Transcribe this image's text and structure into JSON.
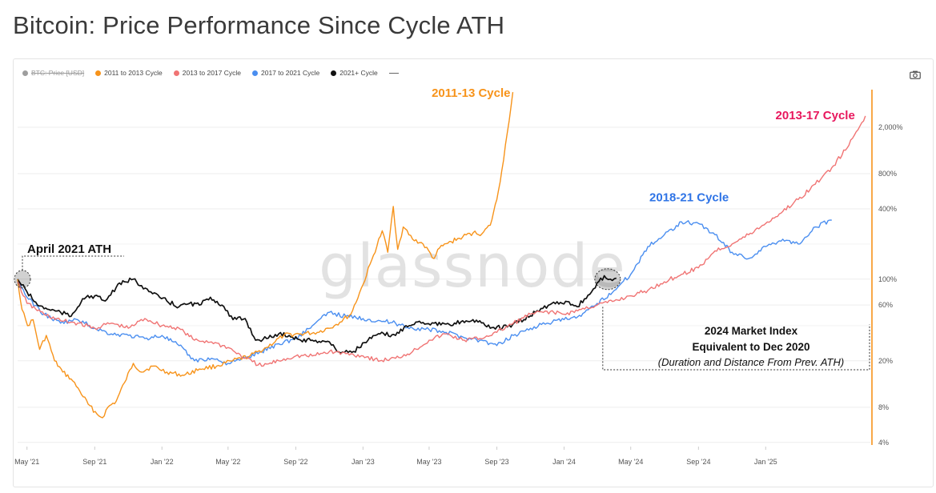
{
  "page": {
    "title": "Bitcoin: Price Performance Since Cycle ATH",
    "watermark": "glassnode"
  },
  "legend": {
    "items": [
      {
        "label": "BTC: Price [USD]",
        "color": "#9e9e9e",
        "enabled": false,
        "kind": "dot"
      },
      {
        "label": "2011 to 2013 Cycle",
        "color": "#f7931a",
        "enabled": true,
        "kind": "dot"
      },
      {
        "label": "2013 to 2017 Cycle",
        "color": "#f07474",
        "enabled": true,
        "kind": "dot"
      },
      {
        "label": "2017 to 2021 Cycle",
        "color": "#4a8ef0",
        "enabled": true,
        "kind": "dot"
      },
      {
        "label": "2021+ Cycle",
        "color": "#111111",
        "enabled": true,
        "kind": "dot"
      },
      {
        "label": "",
        "color": "#666666",
        "enabled": true,
        "kind": "line"
      }
    ]
  },
  "icons": {
    "camera": "camera-icon"
  },
  "annotations": {
    "ath_label": "April 2021 ATH",
    "cycle_2011_label": "2011-13 Cycle",
    "cycle_2013_label": "2013-17 Cycle",
    "cycle_2018_label": "2018-21 Cycle",
    "box_line1": "2024 Market Index",
    "box_line2": "Equivalent to Dec 2020",
    "box_line3": "(Duration and Distance From Prev. ATH)"
  },
  "chart_data": {
    "type": "line",
    "title": "Bitcoin: Price Performance Since Cycle ATH",
    "x_axis": {
      "ticks": [
        "May '21",
        "Sep '21",
        "Jan '22",
        "May '22",
        "Sep '22",
        "Jan '23",
        "May '23",
        "Sep '23",
        "Jan '24",
        "May '24",
        "Sep '24",
        "Jan '25"
      ],
      "range": [
        "2021-04-14",
        "2025-07-10"
      ]
    },
    "y_axis": {
      "scale": "log",
      "unit": "% of previous cycle ATH",
      "ticks": [
        "4%",
        "8%",
        "20%",
        "60%",
        "100%",
        "400%",
        "800%",
        "2,000%"
      ],
      "tick_values": [
        4,
        8,
        20,
        60,
        100,
        400,
        800,
        2000
      ],
      "range": [
        3.8,
        4200
      ],
      "position": "right"
    },
    "grid": true,
    "series": [
      {
        "name": "2011 to 2013 Cycle",
        "color": "#f7931a",
        "points": [
          [
            "2021-04-14",
            100
          ],
          [
            "2021-04-22",
            55
          ],
          [
            "2021-05-02",
            40
          ],
          [
            "2021-05-12",
            45
          ],
          [
            "2021-05-24",
            25
          ],
          [
            "2021-06-05",
            33
          ],
          [
            "2021-06-20",
            20
          ],
          [
            "2021-07-05",
            16
          ],
          [
            "2021-07-20",
            14
          ],
          [
            "2021-08-05",
            11
          ],
          [
            "2021-08-20",
            8.5
          ],
          [
            "2021-09-05",
            7
          ],
          [
            "2021-09-15",
            6.5
          ],
          [
            "2021-09-25",
            8
          ],
          [
            "2021-10-10",
            9
          ],
          [
            "2021-10-25",
            13
          ],
          [
            "2021-11-10",
            19
          ],
          [
            "2021-11-25",
            16
          ],
          [
            "2021-12-15",
            18
          ],
          [
            "2022-01-10",
            16
          ],
          [
            "2022-02-10",
            15
          ],
          [
            "2022-03-10",
            17
          ],
          [
            "2022-04-10",
            18
          ],
          [
            "2022-05-10",
            20
          ],
          [
            "2022-06-10",
            22
          ],
          [
            "2022-07-10",
            26
          ],
          [
            "2022-08-10",
            33
          ],
          [
            "2022-09-10",
            34
          ],
          [
            "2022-10-10",
            35
          ],
          [
            "2022-11-10",
            40
          ],
          [
            "2022-12-10",
            50
          ],
          [
            "2023-01-01",
            90
          ],
          [
            "2023-01-20",
            160
          ],
          [
            "2023-02-05",
            260
          ],
          [
            "2023-02-15",
            170
          ],
          [
            "2023-02-25",
            420
          ],
          [
            "2023-03-05",
            180
          ],
          [
            "2023-03-15",
            280
          ],
          [
            "2023-04-01",
            220
          ],
          [
            "2023-04-20",
            200
          ],
          [
            "2023-05-10",
            150
          ],
          [
            "2023-05-20",
            185
          ],
          [
            "2023-06-10",
            210
          ],
          [
            "2023-07-01",
            230
          ],
          [
            "2023-07-20",
            250
          ],
          [
            "2023-08-05",
            245
          ],
          [
            "2023-08-20",
            290
          ],
          [
            "2023-09-01",
            480
          ],
          [
            "2023-09-10",
            850
          ],
          [
            "2023-09-20",
            1800
          ],
          [
            "2023-09-30",
            4000
          ]
        ]
      },
      {
        "name": "2013 to 2017 Cycle",
        "color": "#f07474",
        "points": [
          [
            "2021-04-14",
            95
          ],
          [
            "2021-05-01",
            62
          ],
          [
            "2021-06-01",
            50
          ],
          [
            "2021-07-01",
            44
          ],
          [
            "2021-08-01",
            42
          ],
          [
            "2021-09-01",
            38
          ],
          [
            "2021-10-01",
            42
          ],
          [
            "2021-11-01",
            38
          ],
          [
            "2021-12-01",
            46
          ],
          [
            "2022-01-01",
            40
          ],
          [
            "2022-02-01",
            38
          ],
          [
            "2022-03-01",
            30
          ],
          [
            "2022-04-01",
            29
          ],
          [
            "2022-05-01",
            26
          ],
          [
            "2022-06-01",
            21
          ],
          [
            "2022-07-01",
            18
          ],
          [
            "2022-08-01",
            20
          ],
          [
            "2022-09-01",
            22
          ],
          [
            "2022-10-01",
            22
          ],
          [
            "2022-11-01",
            24
          ],
          [
            "2022-12-01",
            23
          ],
          [
            "2023-01-01",
            22
          ],
          [
            "2023-02-01",
            20
          ],
          [
            "2023-03-01",
            21
          ],
          [
            "2023-04-01",
            24
          ],
          [
            "2023-05-01",
            30
          ],
          [
            "2023-06-01",
            34
          ],
          [
            "2023-07-01",
            30
          ],
          [
            "2023-08-01",
            31
          ],
          [
            "2023-09-01",
            35
          ],
          [
            "2023-10-01",
            42
          ],
          [
            "2023-11-01",
            50
          ],
          [
            "2023-12-01",
            53
          ],
          [
            "2024-01-01",
            50
          ],
          [
            "2024-02-01",
            55
          ],
          [
            "2024-03-01",
            60
          ],
          [
            "2024-04-01",
            65
          ],
          [
            "2024-05-01",
            72
          ],
          [
            "2024-06-01",
            80
          ],
          [
            "2024-07-01",
            95
          ],
          [
            "2024-08-01",
            110
          ],
          [
            "2024-09-01",
            125
          ],
          [
            "2024-10-01",
            175
          ],
          [
            "2024-11-01",
            200
          ],
          [
            "2024-12-01",
            240
          ],
          [
            "2025-01-01",
            300
          ],
          [
            "2025-02-01",
            380
          ],
          [
            "2025-03-01",
            480
          ],
          [
            "2025-04-01",
            650
          ],
          [
            "2025-05-01",
            900
          ],
          [
            "2025-06-01",
            1400
          ],
          [
            "2025-07-01",
            2500
          ]
        ]
      },
      {
        "name": "2017 to 2021 Cycle",
        "color": "#4a8ef0",
        "points": [
          [
            "2021-04-14",
            100
          ],
          [
            "2021-05-01",
            70
          ],
          [
            "2021-06-01",
            50
          ],
          [
            "2021-07-01",
            42
          ],
          [
            "2021-08-01",
            45
          ],
          [
            "2021-09-01",
            38
          ],
          [
            "2021-10-01",
            34
          ],
          [
            "2021-11-01",
            33
          ],
          [
            "2021-12-01",
            31
          ],
          [
            "2022-01-01",
            33
          ],
          [
            "2022-02-01",
            27
          ],
          [
            "2022-03-01",
            20
          ],
          [
            "2022-04-01",
            21
          ],
          [
            "2022-05-01",
            19
          ],
          [
            "2022-06-01",
            21
          ],
          [
            "2022-07-01",
            24
          ],
          [
            "2022-08-01",
            28
          ],
          [
            "2022-09-01",
            31
          ],
          [
            "2022-10-01",
            40
          ],
          [
            "2022-11-01",
            52
          ],
          [
            "2022-12-01",
            48
          ],
          [
            "2023-01-01",
            46
          ],
          [
            "2023-02-01",
            44
          ],
          [
            "2023-03-01",
            42
          ],
          [
            "2023-04-01",
            38
          ],
          [
            "2023-05-01",
            37
          ],
          [
            "2023-06-01",
            35
          ],
          [
            "2023-07-01",
            32
          ],
          [
            "2023-08-01",
            30
          ],
          [
            "2023-09-01",
            27
          ],
          [
            "2023-10-01",
            33
          ],
          [
            "2023-11-01",
            38
          ],
          [
            "2023-12-01",
            42
          ],
          [
            "2024-01-01",
            45
          ],
          [
            "2024-02-01",
            48
          ],
          [
            "2024-03-01",
            62
          ],
          [
            "2024-04-01",
            80
          ],
          [
            "2024-05-01",
            110
          ],
          [
            "2024-06-01",
            190
          ],
          [
            "2024-07-01",
            240
          ],
          [
            "2024-08-01",
            310
          ],
          [
            "2024-09-01",
            300
          ],
          [
            "2024-10-01",
            240
          ],
          [
            "2024-11-01",
            170
          ],
          [
            "2024-12-01",
            150
          ],
          [
            "2025-01-01",
            190
          ],
          [
            "2025-02-01",
            220
          ],
          [
            "2025-03-01",
            200
          ],
          [
            "2025-04-01",
            280
          ],
          [
            "2025-05-01",
            320
          ]
        ]
      },
      {
        "name": "2021+ Cycle",
        "color": "#111111",
        "points": [
          [
            "2021-04-14",
            100
          ],
          [
            "2021-05-01",
            78
          ],
          [
            "2021-05-20",
            60
          ],
          [
            "2021-06-10",
            55
          ],
          [
            "2021-07-01",
            52
          ],
          [
            "2021-07-20",
            48
          ],
          [
            "2021-08-10",
            68
          ],
          [
            "2021-09-01",
            72
          ],
          [
            "2021-09-20",
            65
          ],
          [
            "2021-10-10",
            85
          ],
          [
            "2021-10-25",
            95
          ],
          [
            "2021-11-10",
            100
          ],
          [
            "2021-11-25",
            88
          ],
          [
            "2021-12-15",
            75
          ],
          [
            "2022-01-10",
            65
          ],
          [
            "2022-02-01",
            58
          ],
          [
            "2022-02-20",
            62
          ],
          [
            "2022-03-10",
            60
          ],
          [
            "2022-03-30",
            70
          ],
          [
            "2022-04-20",
            60
          ],
          [
            "2022-05-10",
            45
          ],
          [
            "2022-06-01",
            46
          ],
          [
            "2022-06-20",
            30
          ],
          [
            "2022-07-10",
            31
          ],
          [
            "2022-08-01",
            34
          ],
          [
            "2022-08-20",
            33
          ],
          [
            "2022-09-10",
            30
          ],
          [
            "2022-10-01",
            30
          ],
          [
            "2022-11-01",
            29
          ],
          [
            "2022-11-15",
            24
          ],
          [
            "2022-12-15",
            24
          ],
          [
            "2023-01-10",
            30
          ],
          [
            "2023-02-01",
            34
          ],
          [
            "2023-03-01",
            33
          ],
          [
            "2023-03-20",
            40
          ],
          [
            "2023-04-10",
            43
          ],
          [
            "2023-05-10",
            42
          ],
          [
            "2023-06-10",
            40
          ],
          [
            "2023-07-01",
            44
          ],
          [
            "2023-08-01",
            44
          ],
          [
            "2023-08-20",
            38
          ],
          [
            "2023-09-20",
            39
          ],
          [
            "2023-10-20",
            45
          ],
          [
            "2023-11-10",
            52
          ],
          [
            "2023-12-10",
            62
          ],
          [
            "2024-01-10",
            64
          ],
          [
            "2024-01-25",
            58
          ],
          [
            "2024-02-20",
            78
          ],
          [
            "2024-03-14",
            107
          ],
          [
            "2024-03-25",
            100
          ],
          [
            "2024-04-05",
            102
          ]
        ]
      }
    ]
  }
}
